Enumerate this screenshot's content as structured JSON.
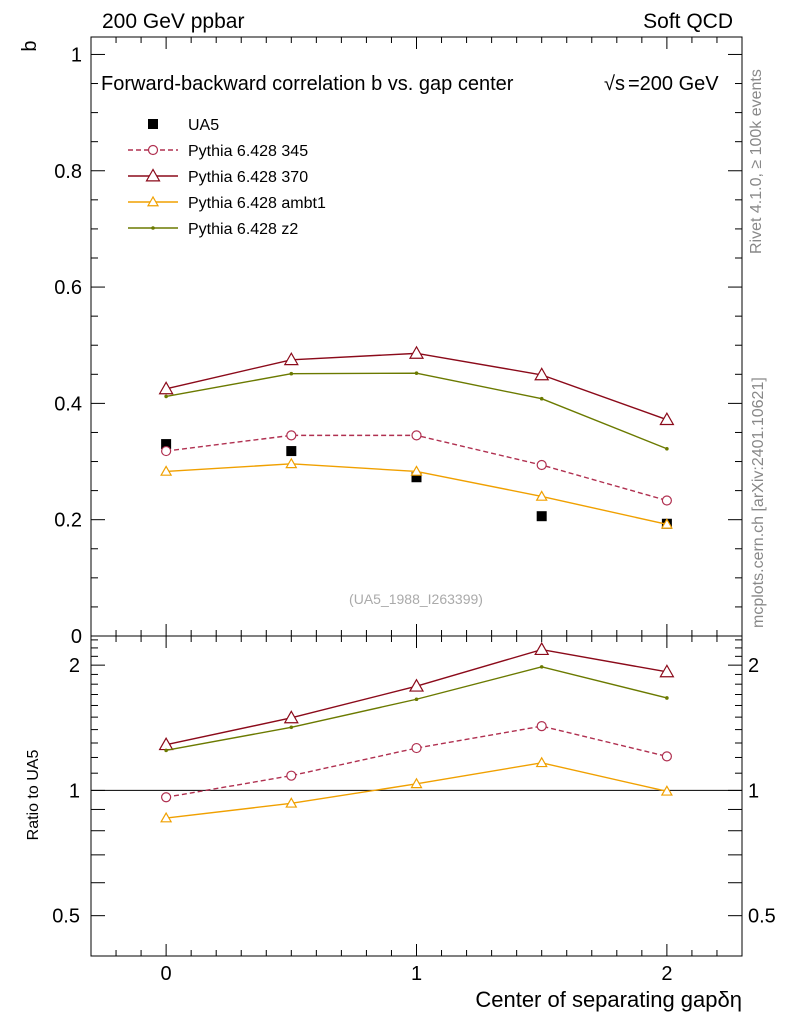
{
  "header": {
    "left": "200 GeV ppbar",
    "right": "Soft QCD"
  },
  "side_text": {
    "rivet": "Rivet 4.1.0, ≥ 100k events",
    "mcplots": "mcplots.cern.ch [arXiv:2401.10621]"
  },
  "chart_data": {
    "type": "line",
    "title": "Forward-backward correlation b  vs. gap center",
    "energy_label": "=200 GeV",
    "sqrt_label": "√s",
    "xlabel": "Center of separating gapδη",
    "ylabel": "b",
    "ratio_ylabel": "Ratio to UA5",
    "analysis_id": "(UA5_1988_I263399)",
    "x": [
      0,
      0.5,
      1,
      1.5,
      2
    ],
    "xlim": [
      -0.3,
      2.3
    ],
    "ylim": [
      0,
      1.03
    ],
    "ratio_ylim": [
      0.4,
      2.35
    ],
    "x_ticks": [
      0,
      1,
      2
    ],
    "x_tick_labels": [
      "0",
      "1",
      "2"
    ],
    "y_ticks": [
      0,
      0.2,
      0.4,
      0.6,
      0.8,
      1
    ],
    "y_tick_labels": [
      "0",
      "0.2",
      "0.4",
      "0.6",
      "0.8",
      "1"
    ],
    "ratio_y_ticks": [
      0.5,
      1,
      2
    ],
    "ratio_y_tick_labels": [
      "0.5",
      "1",
      "2"
    ],
    "series": [
      {
        "name": "UA5",
        "style": "data",
        "color": "#000000",
        "values": [
          0.33,
          0.318,
          0.273,
          0.206,
          0.193
        ],
        "ratio": [
          1,
          1,
          1,
          1,
          1
        ]
      },
      {
        "name": "Pythia 6.428 345",
        "style": "dashed-circle",
        "color": "#b03050",
        "values": [
          0.318,
          0.345,
          0.345,
          0.294,
          0.233
        ],
        "ratio": [
          0.963,
          1.085,
          1.264,
          1.427,
          1.207
        ]
      },
      {
        "name": "Pythia 6.428 370",
        "style": "solid-triangle",
        "color": "#8b0a1a",
        "values": [
          0.425,
          0.475,
          0.486,
          0.449,
          0.372
        ],
        "ratio": [
          1.288,
          1.494,
          1.78,
          2.18,
          1.927
        ]
      },
      {
        "name": "Pythia 6.428 ambt1",
        "style": "solid-triangle",
        "color": "#f0a000",
        "values": [
          0.283,
          0.296,
          0.283,
          0.24,
          0.192
        ],
        "ratio": [
          0.858,
          0.931,
          1.037,
          1.165,
          0.995
        ]
      },
      {
        "name": "Pythia 6.428 z2",
        "style": "solid-dot",
        "color": "#6b7a00",
        "values": [
          0.412,
          0.451,
          0.452,
          0.408,
          0.322
        ],
        "ratio": [
          1.248,
          1.418,
          1.656,
          1.981,
          1.668
        ]
      }
    ]
  }
}
